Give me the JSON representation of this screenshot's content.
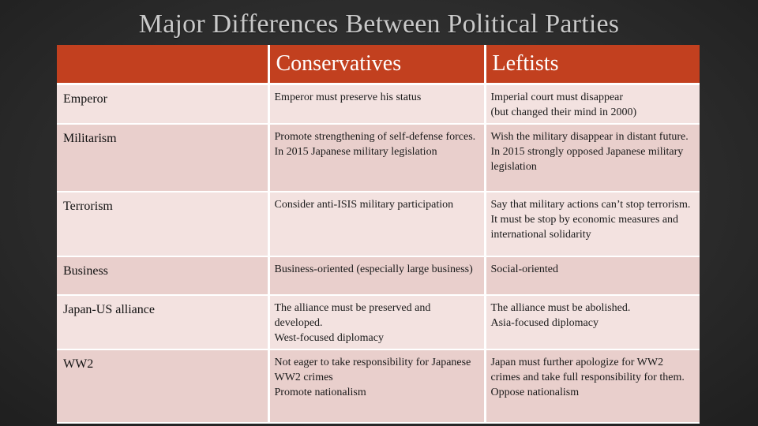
{
  "title": "Major Differences Between Political Parties",
  "columns": [
    "",
    "Conservatives",
    "Leftists"
  ],
  "rows": [
    {
      "label": "Emperor",
      "conservatives": [
        "Emperor must preserve his status"
      ],
      "leftists": [
        "Imperial court must disappear",
        "(but changed their mind in 2000)"
      ]
    },
    {
      "label": "Militarism",
      "conservatives": [
        "Promote strengthening of self-defense forces. In 2015 Japanese military legislation"
      ],
      "leftists": [
        "Wish the military disappear in distant future. In 2015 strongly opposed Japanese military legislation"
      ]
    },
    {
      "label": "Terrorism",
      "conservatives": [
        "Consider anti-ISIS military participation"
      ],
      "leftists": [
        "Say that military actions can’t stop terrorism. It must be stop by economic measures and international solidarity"
      ]
    },
    {
      "label": "Business",
      "conservatives": [
        "Business-oriented (especially large business)"
      ],
      "leftists": [
        "Social-oriented"
      ]
    },
    {
      "label": "Japan-US alliance",
      "conservatives": [
        "The alliance must be preserved and developed.",
        "West-focused diplomacy"
      ],
      "leftists": [
        "The alliance must be abolished.",
        "Asia-focused diplomacy"
      ]
    },
    {
      "label": "WW2",
      "conservatives": [
        "Not eager to take responsibility for Japanese WW2 crimes",
        "Promote nationalism"
      ],
      "leftists": [
        "Japan must further apologize for WW2 crimes and take full responsibility for them.",
        "Oppose nationalism"
      ]
    }
  ]
}
